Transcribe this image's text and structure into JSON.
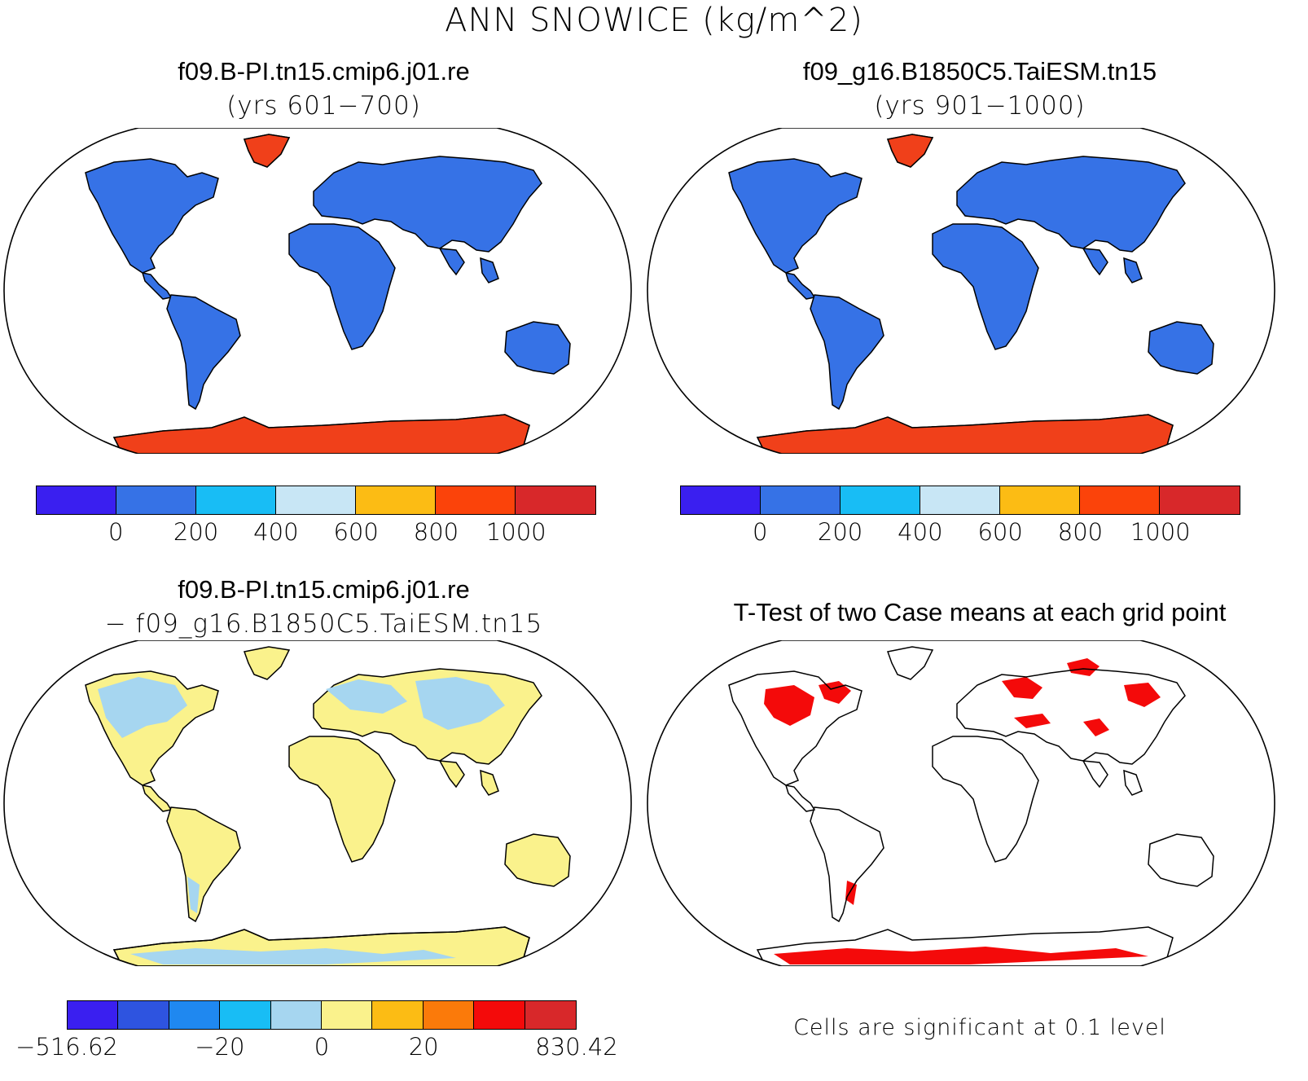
{
  "title": "ANN SNOWICE (kg/m^2)",
  "panels": {
    "case1": {
      "title_line1": "f09.B-PI.tn15.cmip6.j01.re",
      "title_line2": "(yrs 601−700)"
    },
    "case2": {
      "title_line1": "f09_g16.B1850C5.TaiESM.tn15",
      "title_line2": "(yrs 901−1000)"
    },
    "diff": {
      "title_line1": "f09.B-PI.tn15.cmip6.j01.re",
      "title_line2": "− f09_g16.B1850C5.TaiESM.tn15"
    },
    "ttest": {
      "title": "T-Test of two Case means at each grid point",
      "note": "Cells are significant at 0.1 level"
    }
  },
  "colorbar_main": {
    "colors": [
      "#3a1ff0",
      "#3672e6",
      "#18bdf5",
      "#c8e6f5",
      "#fcbc14",
      "#fb430a",
      "#d8282a"
    ],
    "ticks": [
      "0",
      "200",
      "400",
      "600",
      "800",
      "1000"
    ]
  },
  "colorbar_diff": {
    "colors": [
      "#3a1ff0",
      "#2e54e0",
      "#1f88f0",
      "#18bdf5",
      "#a6d6f0",
      "#faf28c",
      "#fcbc14",
      "#fb7a0a",
      "#f40a0a",
      "#d8282a"
    ],
    "ticks": [
      "−516.62",
      "−20",
      "0",
      "20",
      "830.42"
    ]
  },
  "colors": {
    "land_main": "#3672e6",
    "ice_main": "#f0401a",
    "land_diff": "#faf28c",
    "land_diff_neg": "#a6d6f0",
    "significant": "#f40a0a"
  }
}
